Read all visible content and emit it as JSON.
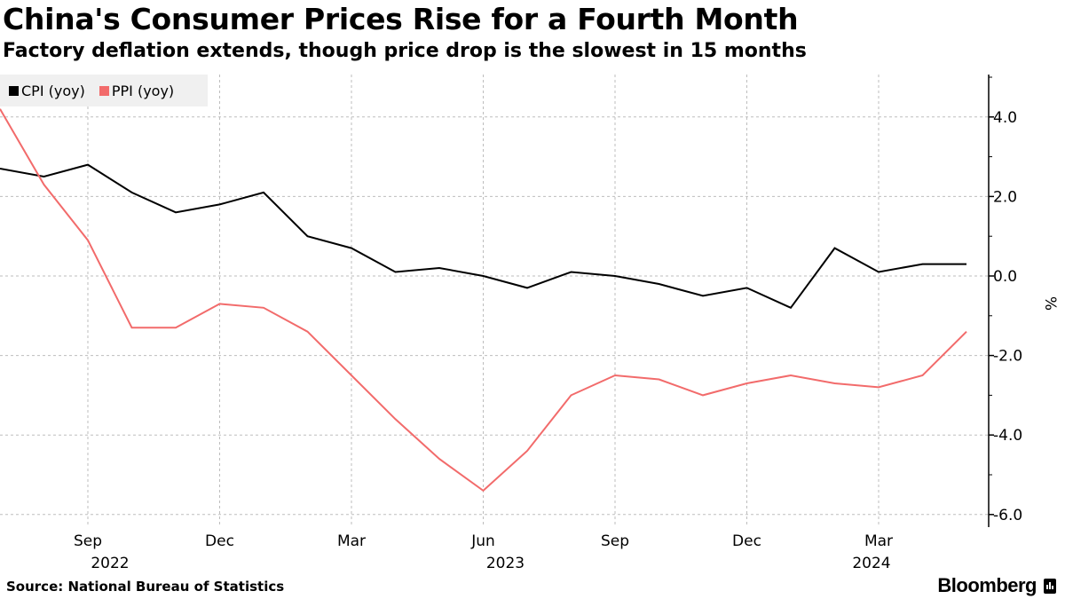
{
  "header": {
    "title": "China's Consumer Prices Rise for a Fourth Month",
    "subtitle": "Factory deflation extends, though price drop is the slowest in 15 months"
  },
  "footer": {
    "source": "Source: National Bureau of Statistics",
    "brand": "Bloomberg",
    "brand_icon": "bloomberg-logo-icon"
  },
  "colors": {
    "cpi": "#000000",
    "ppi": "#f26b6b",
    "legend_bg": "#f0f0f0",
    "grid": "#bdbdbd"
  },
  "chart_data": {
    "type": "line",
    "title": "China's Consumer Prices Rise for a Fourth Month",
    "subtitle": "Factory deflation extends, though price drop is the slowest in 15 months",
    "xlabel": "",
    "ylabel": "%",
    "ylim": [
      -6.4,
      5.0
    ],
    "y_ticks": [
      4.0,
      2.0,
      0.0,
      -2.0,
      -4.0,
      -6.0
    ],
    "y_tick_labels": [
      "4.0",
      "2.0",
      "0.0",
      "-2.0",
      "-4.0",
      "-6.0"
    ],
    "y_axis_side": "right",
    "grid": true,
    "legend_position": "top-left",
    "x": [
      "2022-07",
      "2022-08",
      "2022-09",
      "2022-10",
      "2022-11",
      "2022-12",
      "2023-01",
      "2023-02",
      "2023-03",
      "2023-04",
      "2023-05",
      "2023-06",
      "2023-07",
      "2023-08",
      "2023-09",
      "2023-10",
      "2023-11",
      "2023-12",
      "2024-01",
      "2024-02",
      "2024-03",
      "2024-04",
      "2024-05"
    ],
    "x_ticks": [
      {
        "index": 2,
        "month": "Sep",
        "year": "2022"
      },
      {
        "index": 5,
        "month": "Dec",
        "year": ""
      },
      {
        "index": 8,
        "month": "Mar",
        "year": ""
      },
      {
        "index": 11,
        "month": "Jun",
        "year": "2023"
      },
      {
        "index": 14,
        "month": "Sep",
        "year": ""
      },
      {
        "index": 17,
        "month": "Dec",
        "year": ""
      },
      {
        "index": 20,
        "month": "Mar",
        "year": "2024"
      }
    ],
    "series": [
      {
        "name": "CPI (yoy)",
        "color": "#000000",
        "values": [
          2.7,
          2.5,
          2.8,
          2.1,
          1.6,
          1.8,
          2.1,
          1.0,
          0.7,
          0.1,
          0.2,
          0.0,
          -0.3,
          0.1,
          0.0,
          -0.2,
          -0.5,
          -0.3,
          -0.8,
          0.7,
          0.1,
          0.3,
          0.3
        ]
      },
      {
        "name": "PPI (yoy)",
        "color": "#f26b6b",
        "values": [
          4.2,
          2.3,
          0.9,
          -1.3,
          -1.3,
          -0.7,
          -0.8,
          -1.4,
          -2.5,
          -3.6,
          -4.6,
          -5.4,
          -4.4,
          -3.0,
          -2.5,
          -2.6,
          -3.0,
          -2.7,
          -2.5,
          -2.7,
          -2.8,
          -2.5,
          -1.4
        ]
      }
    ]
  }
}
